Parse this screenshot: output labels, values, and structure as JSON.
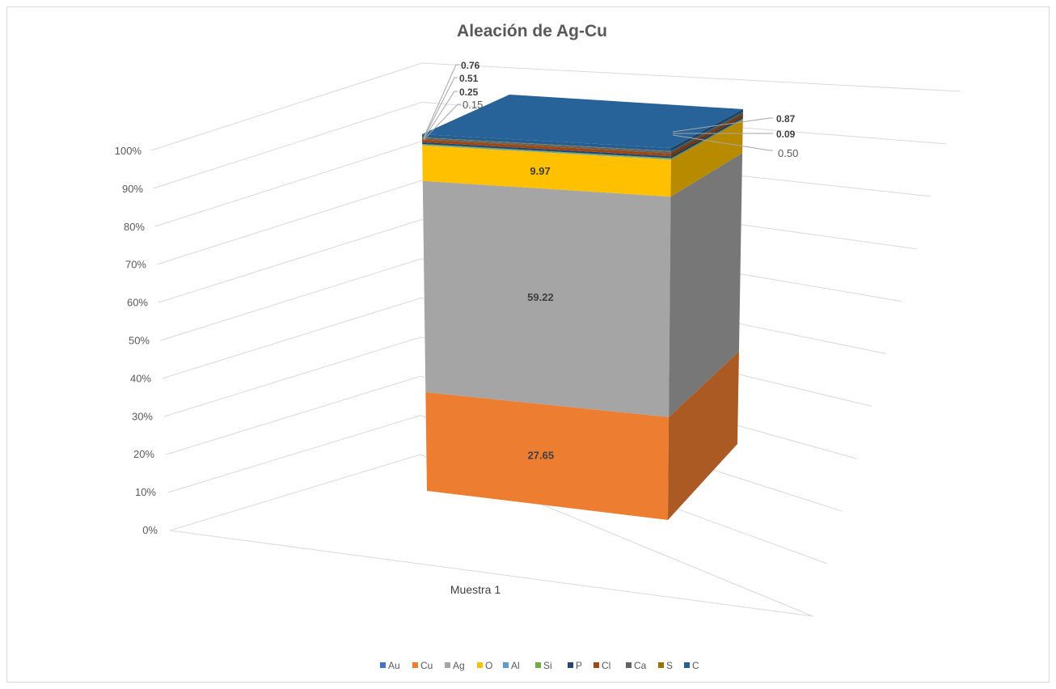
{
  "chart_data": {
    "type": "bar",
    "stacked": "percent",
    "three_d": true,
    "title": "Aleación de Ag-Cu",
    "categories": [
      "Muestra  1"
    ],
    "y_ticks": [
      "0%",
      "10%",
      "20%",
      "30%",
      "40%",
      "50%",
      "60%",
      "70%",
      "80%",
      "90%",
      "100%"
    ],
    "ylim": [
      0,
      100
    ],
    "grid": true,
    "legend_position": "bottom",
    "series": [
      {
        "name": "Au",
        "values": [
          0
        ],
        "color": "#4472c4"
      },
      {
        "name": "Cu",
        "values": [
          27.65
        ],
        "label": "27.65",
        "color": "#ed7d31"
      },
      {
        "name": "Ag",
        "values": [
          59.22
        ],
        "label": "59.22",
        "color": "#a5a5a5"
      },
      {
        "name": "O",
        "values": [
          9.97
        ],
        "label": "9.97",
        "color": "#ffc000"
      },
      {
        "name": "Al",
        "values": [
          0.15
        ],
        "label": "0.15",
        "color": "#5b9bd5"
      },
      {
        "name": "Si",
        "values": [
          0.25
        ],
        "label": "0.25",
        "color": "#70ad47"
      },
      {
        "name": "P",
        "values": [
          0.51
        ],
        "label": "0.51",
        "color": "#264478"
      },
      {
        "name": "Cl",
        "values": [
          0.76
        ],
        "label": "0.76",
        "color": "#9e480e"
      },
      {
        "name": "Ca",
        "values": [
          0.5
        ],
        "label": "0.50",
        "color": "#636363"
      },
      {
        "name": "S",
        "values": [
          0.09
        ],
        "label": "0.09",
        "color": "#997300"
      },
      {
        "name": "C",
        "values": [
          0.87
        ],
        "label": "0.87",
        "color": "#255e91"
      }
    ]
  }
}
